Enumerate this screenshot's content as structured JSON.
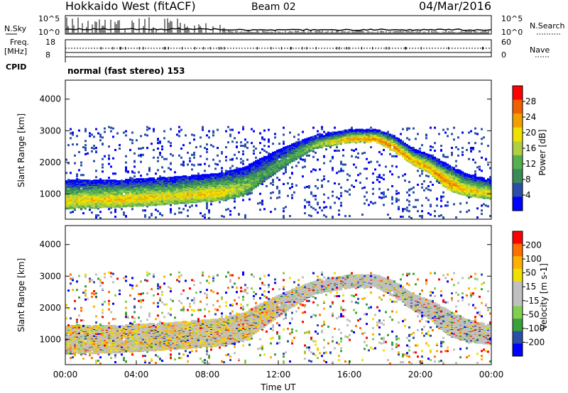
{
  "header": {
    "title": "Hokkaido West (fitACF)",
    "beam": "Beam 02",
    "date": "04/Mar/2016"
  },
  "noise_panel": {
    "left_label": "N.Sky",
    "right_label": "N.Search",
    "y_top": "10^5",
    "y_bottom": "10^0",
    "y_top_right": "10^5",
    "y_bottom_right": "10^0"
  },
  "freq_panel": {
    "left_label_1": "Freq.",
    "left_label_2": "[MHz]",
    "right_label": "Nave",
    "y_top": "18",
    "y_bottom": "8",
    "y_top_right": "60",
    "y_bottom_right": "0",
    "cpid_label": "CPID"
  },
  "mode_text": "normal (fast stereo) 153",
  "colors": {
    "power": [
      "#0000ff",
      "#2a4fa8",
      "#3a8a5a",
      "#55b050",
      "#b0d040",
      "#f0e000",
      "#f0a000",
      "#f06000",
      "#ff0000"
    ],
    "velocity": [
      "#ff0000",
      "#ff7000",
      "#ffb000",
      "#f0e000",
      "#c0c0c0",
      "#c0c0c0",
      "#80d050",
      "#3aa03a",
      "#2a4fa8",
      "#0000ff"
    ]
  },
  "chart_data": [
    {
      "type": "heatmap",
      "name": "power",
      "ylabel": "Slant Range [km]",
      "yticks": [
        "1000",
        "2000",
        "3000",
        "4000"
      ],
      "ylim": [
        200,
        4600
      ],
      "xlim": [
        0,
        24
      ],
      "colorbar": {
        "label": "Power [dB]",
        "ticks": [
          "4",
          "8",
          "12",
          "16",
          "20",
          "24",
          "28"
        ],
        "range": [
          0,
          32
        ]
      },
      "echo_band": {
        "hours": [
          0,
          3,
          6,
          8.5,
          10,
          11,
          12.5,
          14,
          15,
          16,
          17.5,
          18.5,
          19.5,
          20.5,
          21.5,
          22.5,
          24
        ],
        "lower_km": [
          500,
          550,
          650,
          750,
          900,
          1300,
          1900,
          2400,
          2500,
          2600,
          2600,
          2300,
          1900,
          1600,
          1100,
          900,
          800
        ],
        "upper_km": [
          1400,
          1400,
          1500,
          1600,
          1800,
          2100,
          2500,
          2800,
          2900,
          3000,
          3000,
          2800,
          2400,
          2200,
          1900,
          1600,
          1400
        ],
        "peak_power_db": [
          20,
          22,
          20,
          22,
          16,
          12,
          12,
          16,
          20,
          24,
          26,
          26,
          24,
          24,
          26,
          22,
          20
        ]
      }
    },
    {
      "type": "heatmap",
      "name": "velocity",
      "ylabel": "Slant Range [km]",
      "xlabel": "Time UT",
      "yticks": [
        "1000",
        "2000",
        "3000",
        "4000"
      ],
      "ylim": [
        200,
        4600
      ],
      "xlim": [
        0,
        24
      ],
      "xticks": [
        "00:00",
        "04:00",
        "08:00",
        "12:00",
        "16:00",
        "20:00",
        "00:00"
      ],
      "colorbar": {
        "label": "Velocity [m s-1]",
        "ticks": [
          "200",
          "100",
          "50",
          "15",
          "-15",
          "-50",
          "-100",
          "-200"
        ]
      }
    }
  ]
}
